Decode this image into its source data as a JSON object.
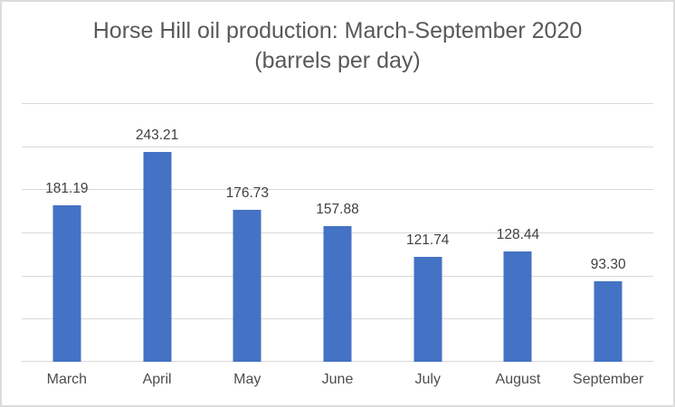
{
  "chart_data": {
    "type": "bar",
    "title": "Horse Hill oil production: March-September 2020",
    "subtitle": "(barrels per day)",
    "categories": [
      "March",
      "April",
      "May",
      "June",
      "July",
      "August",
      "September"
    ],
    "values": [
      181.19,
      243.21,
      176.73,
      157.88,
      121.74,
      128.44,
      93.3
    ],
    "value_labels": [
      "181.19",
      "243.21",
      "176.73",
      "157.88",
      "121.74",
      "128.44",
      "93.30"
    ],
    "ylim": [
      0,
      300
    ],
    "gridline_step": 50,
    "grid": "horizontal",
    "legend": "none",
    "y_axis_tick_labels": "none",
    "colors": {
      "bar": "#4472C4",
      "gridline": "#D9D9D9",
      "title": "#595959",
      "data_label": "#404040",
      "category_label": "#4D4D4D",
      "border": "#DCDCDC",
      "background": "#FFFFFF"
    }
  }
}
